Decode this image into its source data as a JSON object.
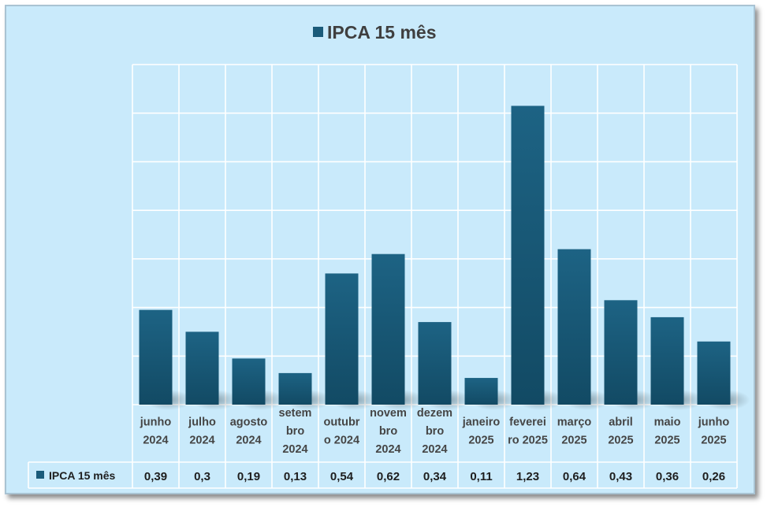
{
  "chart_data": {
    "type": "bar",
    "title": "",
    "legend_position": "top",
    "grid": true,
    "ylim": [
      0,
      1.4
    ],
    "series": [
      {
        "name": "IPCA 15  mês",
        "color": "#1a5b7a",
        "values": [
          0.39,
          0.3,
          0.19,
          0.13,
          0.54,
          0.62,
          0.34,
          0.11,
          1.23,
          0.64,
          0.43,
          0.36,
          0.26
        ]
      }
    ],
    "categories": [
      [
        "junho",
        "2024"
      ],
      [
        "julho",
        "2024"
      ],
      [
        "agosto",
        "2024"
      ],
      [
        "setem",
        "bro",
        "2024"
      ],
      [
        "outubr",
        "o 2024"
      ],
      [
        "novem",
        "bro",
        "2024"
      ],
      [
        "dezem",
        "bro",
        "2024"
      ],
      [
        "janeiro",
        "2025"
      ],
      [
        "feverei",
        "ro 2025"
      ],
      [
        "março",
        "2025"
      ],
      [
        "abril",
        "2025"
      ],
      [
        "maio",
        "2025"
      ],
      [
        "junho",
        "2025"
      ]
    ],
    "data_table_labels": [
      "0,39",
      "0,3",
      "0,19",
      "0,13",
      "0,54",
      "0,62",
      "0,34",
      "0,11",
      "1,23",
      "0,64",
      "0,43",
      "0,36",
      "0,26"
    ]
  }
}
